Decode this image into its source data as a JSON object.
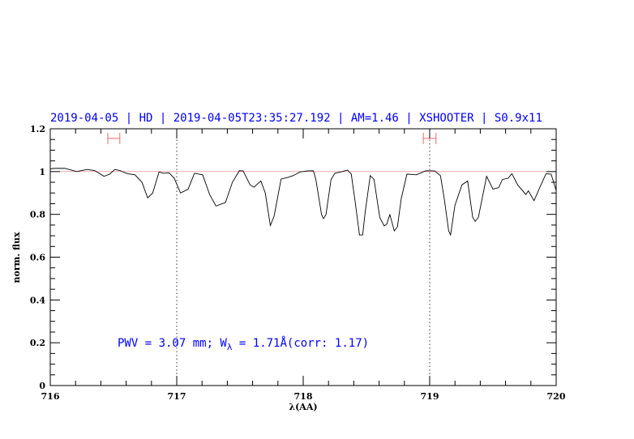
{
  "chart_data": {
    "type": "line",
    "title": "2019-04-05 | HD | 2019-04-05T23:35:27.192 | AM=1.46 | XSHOOTER | S0.9x11",
    "xlabel": "λ(AA)",
    "ylabel": "norm. flux",
    "xlim": [
      716,
      720
    ],
    "ylim": [
      0,
      1.2
    ],
    "x_ticks": [
      "716",
      "717",
      "718",
      "719",
      "720"
    ],
    "y_ticks": [
      "0",
      "0.2",
      "0.4",
      "0.6",
      "0.8",
      "1",
      "1.2"
    ],
    "x_tick_values": [
      716,
      717,
      718,
      719,
      720
    ],
    "y_tick_values": [
      0,
      0.2,
      0.4,
      0.6,
      0.8,
      1,
      1.2
    ],
    "x_minor_step": 0.2,
    "y_minor_step": 0.05,
    "grid": false,
    "reference_line": {
      "y": 1.0,
      "color": "#dd4444"
    },
    "vertical_dotted_lines": [
      717,
      719
    ],
    "error_bars": [
      {
        "x0": 716.455,
        "x1": 716.55,
        "y": 1.155,
        "color": "#ff6666"
      },
      {
        "x0": 718.95,
        "x1": 719.05,
        "y": 1.155,
        "color": "#ff6666"
      }
    ],
    "annotation": {
      "pre": "PWV = 3.07 mm; W",
      "sub": "λ",
      "post": " = 1.71Å(corr: 1.17)"
    },
    "series": [
      {
        "color": "#000000",
        "x": [
          716.0,
          716.03,
          716.115,
          716.21,
          716.29,
          716.35,
          716.425,
          716.47,
          716.51,
          716.55,
          716.61,
          716.67,
          716.725,
          716.77,
          716.81,
          716.86,
          716.895,
          716.94,
          716.98,
          717.03,
          717.09,
          717.14,
          717.205,
          717.26,
          717.31,
          717.355,
          717.385,
          717.44,
          717.495,
          717.525,
          717.58,
          717.61,
          717.665,
          717.7,
          717.74,
          717.77,
          717.825,
          717.88,
          717.92,
          717.975,
          718.03,
          718.08,
          718.1,
          718.145,
          718.16,
          718.18,
          718.22,
          718.25,
          718.295,
          718.35,
          718.38,
          718.41,
          718.445,
          718.47,
          718.49,
          718.53,
          718.56,
          718.605,
          718.64,
          718.66,
          718.685,
          718.72,
          718.745,
          718.775,
          718.82,
          718.895,
          718.97,
          719.04,
          719.085,
          719.115,
          719.15,
          719.165,
          719.2,
          719.255,
          719.3,
          719.34,
          719.36,
          719.385,
          719.45,
          719.5,
          719.545,
          719.575,
          719.62,
          719.65,
          719.695,
          719.76,
          719.78,
          719.825,
          719.88,
          719.92,
          719.96,
          720.0
        ],
        "y": [
          1.013,
          1.015,
          1.015,
          1.0,
          1.01,
          1.005,
          0.978,
          0.988,
          1.01,
          1.005,
          0.99,
          0.985,
          0.95,
          0.877,
          0.9,
          0.998,
          0.992,
          0.994,
          0.969,
          0.9,
          0.918,
          0.992,
          0.985,
          0.893,
          0.839,
          0.849,
          0.855,
          0.95,
          1.004,
          1.003,
          0.938,
          0.927,
          0.956,
          0.9,
          0.748,
          0.792,
          0.965,
          0.973,
          0.981,
          0.998,
          1.003,
          1.004,
          0.963,
          0.799,
          0.78,
          0.799,
          0.963,
          0.992,
          0.998,
          1.007,
          0.988,
          0.862,
          0.704,
          0.704,
          0.811,
          0.981,
          0.963,
          0.786,
          0.746,
          0.754,
          0.799,
          0.723,
          0.742,
          0.874,
          0.988,
          0.985,
          1.004,
          1.003,
          0.981,
          0.874,
          0.723,
          0.704,
          0.843,
          0.938,
          0.956,
          0.786,
          0.767,
          0.786,
          0.978,
          0.918,
          0.925,
          0.963,
          0.969,
          0.99,
          0.938,
          0.893,
          0.91,
          0.864,
          0.938,
          0.99,
          0.988,
          0.912
        ]
      }
    ]
  }
}
